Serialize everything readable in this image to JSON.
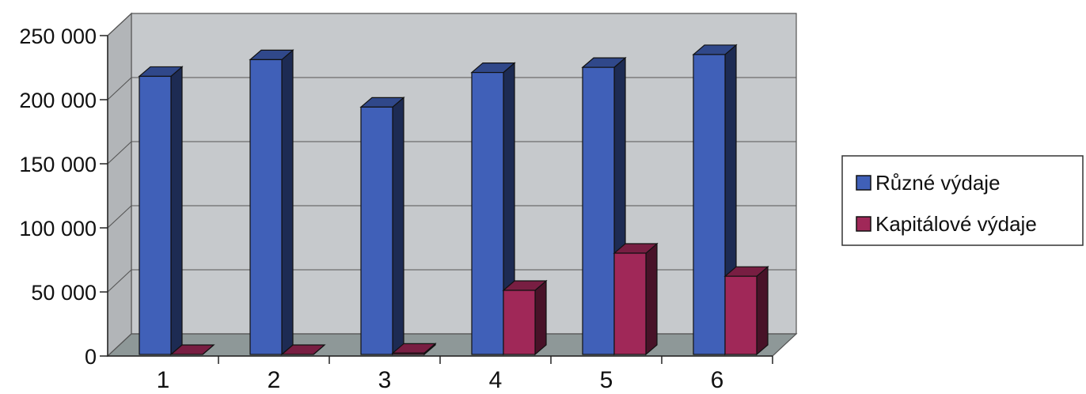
{
  "chart_data": {
    "type": "bar",
    "categories": [
      "1",
      "2",
      "3",
      "4",
      "5",
      "6"
    ],
    "series": [
      {
        "name": "Různé výdaje",
        "values": [
          217000,
          230000,
          193000,
          220000,
          224000,
          234000
        ],
        "color": "#4060b8"
      },
      {
        "name": "Kapitálové výdaje",
        "values": [
          0,
          0,
          1000,
          50000,
          79000,
          61000
        ],
        "color": "#a02858"
      }
    ],
    "y_ticks": [
      "0",
      "50 000",
      "100 000",
      "150 000",
      "200 000",
      "250 000"
    ],
    "ylim": [
      0,
      250000
    ],
    "title": "",
    "xlabel": "",
    "ylabel": "",
    "grid": true,
    "legend_position": "right",
    "style": "3d-clustered-column",
    "wall_color": "#c6c9cc",
    "floor_color": "#8e9898"
  }
}
